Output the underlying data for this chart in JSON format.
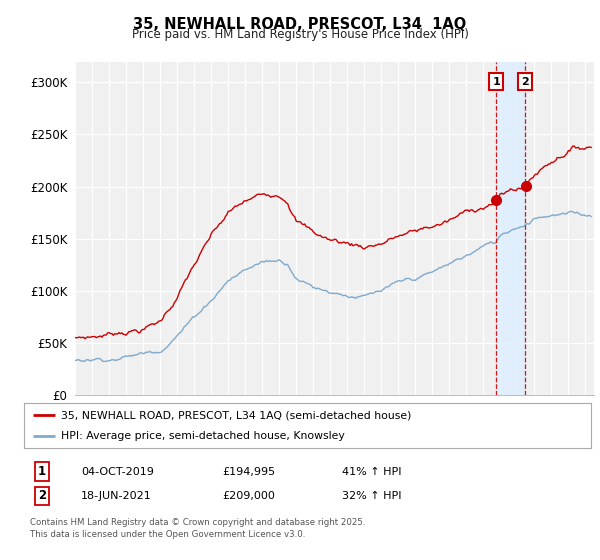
{
  "title": "35, NEWHALL ROAD, PRESCOT, L34  1AQ",
  "subtitle": "Price paid vs. HM Land Registry's House Price Index (HPI)",
  "ylabel_ticks": [
    "£0",
    "£50K",
    "£100K",
    "£150K",
    "£200K",
    "£250K",
    "£300K"
  ],
  "ytick_vals": [
    0,
    50000,
    100000,
    150000,
    200000,
    250000,
    300000
  ],
  "ylim": [
    0,
    320000
  ],
  "xlim_start": 1995.0,
  "xlim_end": 2025.5,
  "red_color": "#cc0000",
  "blue_color": "#7faacc",
  "vline_color": "#cc0000",
  "shade_color": "#ddeeff",
  "marker1_x": 2019.76,
  "marker2_x": 2021.46,
  "legend_line1": "35, NEWHALL ROAD, PRESCOT, L34 1AQ (semi-detached house)",
  "legend_line2": "HPI: Average price, semi-detached house, Knowsley",
  "table_rows": [
    [
      "1",
      "04-OCT-2019",
      "£194,995",
      "41% ↑ HPI"
    ],
    [
      "2",
      "18-JUN-2021",
      "£209,000",
      "32% ↑ HPI"
    ]
  ],
  "footnote": "Contains HM Land Registry data © Crown copyright and database right 2025.\nThis data is licensed under the Open Government Licence v3.0.",
  "background_color": "#f0f0f0",
  "red_anchors_t": [
    1995,
    1996,
    1997,
    1998,
    1999,
    2000,
    2001,
    2002,
    2003,
    2004,
    2005,
    2006,
    2007,
    2007.5,
    2008,
    2009,
    2010,
    2011,
    2012,
    2013,
    2014,
    2015,
    2016,
    2017,
    2018,
    2019,
    2019.76,
    2020,
    2021,
    2021.46,
    2022,
    2023,
    2024,
    2025.3
  ],
  "red_anchors_v": [
    55000,
    57000,
    60000,
    65000,
    68000,
    75000,
    100000,
    130000,
    155000,
    175000,
    185000,
    190000,
    195000,
    192000,
    175000,
    162000,
    155000,
    152000,
    150000,
    155000,
    162000,
    165000,
    170000,
    175000,
    182000,
    190000,
    194995,
    200000,
    207000,
    209000,
    220000,
    235000,
    248000,
    252000
  ],
  "blue_anchors_t": [
    1995,
    1996,
    1997,
    1998,
    1999,
    2000,
    2001,
    2002,
    2003,
    2004,
    2005,
    2006,
    2007,
    2007.5,
    2008,
    2009,
    2010,
    2011,
    2012,
    2013,
    2014,
    2015,
    2016,
    2017,
    2018,
    2019,
    2019.76,
    2020,
    2021,
    2021.46,
    2022,
    2023,
    2024,
    2025.3
  ],
  "blue_anchors_v": [
    33000,
    35000,
    37000,
    40000,
    43000,
    48000,
    65000,
    82000,
    100000,
    120000,
    130000,
    138000,
    140000,
    138000,
    127000,
    118000,
    115000,
    113000,
    112000,
    115000,
    120000,
    123000,
    128000,
    135000,
    143000,
    152000,
    155000,
    162000,
    172000,
    175000,
    183000,
    188000,
    188000,
    186000
  ]
}
